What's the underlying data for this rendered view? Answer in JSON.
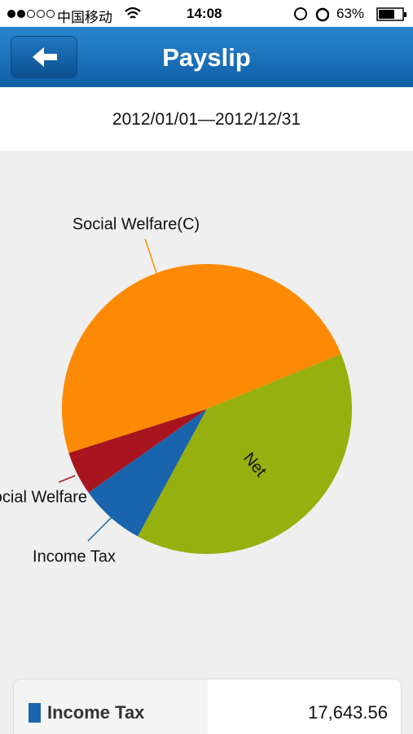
{
  "status_bar": {
    "carrier": "中国移动",
    "time": "14:08",
    "battery": "63%"
  },
  "header": {
    "title": "Payslip"
  },
  "period": "2012/01/01—2012/12/31",
  "chart_data": {
    "type": "pie",
    "categories": [
      "Net",
      "Income Tax",
      "Social Welfare",
      "Social Welfare(C)"
    ],
    "values": [
      94500,
      17643.56,
      11800,
      117700
    ],
    "colors": [
      "#95b00f",
      "#1a64ad",
      "#a8151f",
      "#fc8a04"
    ]
  },
  "table": {
    "rows": [
      [
        "Income Tax",
        "17,643.56"
      ]
    ]
  }
}
